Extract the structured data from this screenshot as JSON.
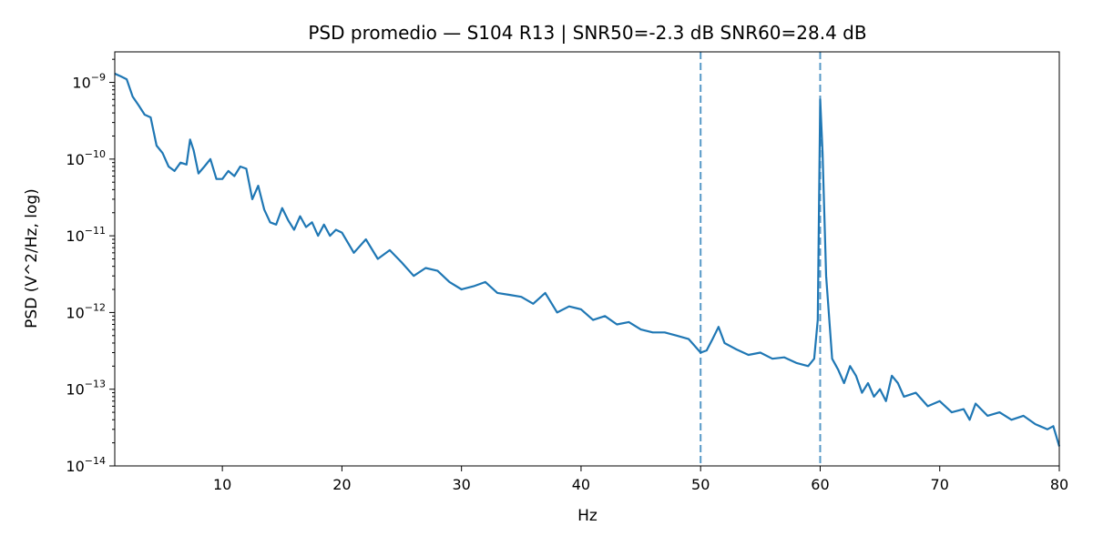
{
  "chart_data": {
    "type": "line",
    "title": "PSD promedio — S104 R13 | SNR50=-2.3 dB  SNR60=28.4 dB",
    "xlabel": "Hz",
    "ylabel": "PSD (V^2/Hz, log)",
    "xlim": [
      1,
      80
    ],
    "ylim": [
      1e-14,
      2.5e-09
    ],
    "yscale": "log",
    "grid": false,
    "legend": false,
    "x_ticks": [
      {
        "value": 10,
        "label": "10"
      },
      {
        "value": 20,
        "label": "20"
      },
      {
        "value": 30,
        "label": "30"
      },
      {
        "value": 40,
        "label": "40"
      },
      {
        "value": 50,
        "label": "50"
      },
      {
        "value": 60,
        "label": "60"
      },
      {
        "value": 70,
        "label": "70"
      },
      {
        "value": 80,
        "label": "80"
      }
    ],
    "y_ticks": [
      {
        "value": 1e-09,
        "label_base": "10",
        "label_exp": "−9"
      },
      {
        "value": 1e-10,
        "label_base": "10",
        "label_exp": "−10"
      },
      {
        "value": 1e-11,
        "label_base": "10",
        "label_exp": "−11"
      },
      {
        "value": 1e-12,
        "label_base": "10",
        "label_exp": "−12"
      },
      {
        "value": 1e-13,
        "label_base": "10",
        "label_exp": "−13"
      },
      {
        "value": 1e-14,
        "label_base": "10",
        "label_exp": "−14"
      }
    ],
    "line_color": "#1f77b4",
    "vlines": [
      {
        "x": 50,
        "style": "dashed",
        "color": "#1f77b4"
      },
      {
        "x": 60,
        "style": "dashed",
        "color": "#1f77b4"
      }
    ],
    "series": [
      {
        "x": [
          1.0,
          1.5,
          2.0,
          2.5,
          3.0,
          3.5,
          4.0,
          4.5,
          5.0,
          5.5,
          6.0,
          6.5,
          7.0,
          7.3,
          7.6,
          8.0,
          8.5,
          9.0,
          9.5,
          10.0,
          10.5,
          11.0,
          11.5,
          12.0,
          12.5,
          13.0,
          13.5,
          14.0,
          14.5,
          15.0,
          15.5,
          16.0,
          16.5,
          17.0,
          17.5,
          18.0,
          18.5,
          19.0,
          19.5,
          20.0,
          21.0,
          22.0,
          23.0,
          24.0,
          25.0,
          26.0,
          27.0,
          28.0,
          29.0,
          30.0,
          31.0,
          32.0,
          33.0,
          34.0,
          35.0,
          36.0,
          37.0,
          38.0,
          39.0,
          40.0,
          41.0,
          42.0,
          43.0,
          44.0,
          45.0,
          46.0,
          47.0,
          48.0,
          49.0,
          50.0,
          50.5,
          51.0,
          51.5,
          52.0,
          53.0,
          54.0,
          55.0,
          56.0,
          57.0,
          58.0,
          59.0,
          59.5,
          59.8,
          60.0,
          60.2,
          60.5,
          61.0,
          61.5,
          62.0,
          62.5,
          63.0,
          63.5,
          64.0,
          64.5,
          65.0,
          65.5,
          66.0,
          66.5,
          67.0,
          68.0,
          69.0,
          70.0,
          71.0,
          72.0,
          72.5,
          73.0,
          74.0,
          75.0,
          76.0,
          77.0,
          78.0,
          79.0,
          79.5,
          80.0
        ],
        "y": [
          1.3e-09,
          1.2e-09,
          1.1e-09,
          6.5e-10,
          5e-10,
          3.8e-10,
          3.5e-10,
          1.5e-10,
          1.2e-10,
          8e-11,
          7e-11,
          9e-11,
          8.5e-11,
          1.8e-10,
          1.3e-10,
          6.5e-11,
          8e-11,
          1e-10,
          5.5e-11,
          5.5e-11,
          7e-11,
          6e-11,
          8e-11,
          7.5e-11,
          3e-11,
          4.5e-11,
          2.2e-11,
          1.5e-11,
          1.4e-11,
          2.3e-11,
          1.6e-11,
          1.2e-11,
          1.8e-11,
          1.3e-11,
          1.5e-11,
          1e-11,
          1.4e-11,
          1e-11,
          1.2e-11,
          1.1e-11,
          6e-12,
          9e-12,
          5e-12,
          6.5e-12,
          4.5e-12,
          3e-12,
          3.8e-12,
          3.5e-12,
          2.5e-12,
          2e-12,
          2.2e-12,
          2.5e-12,
          1.8e-12,
          1.7e-12,
          1.6e-12,
          1.3e-12,
          1.8e-12,
          1e-12,
          1.2e-12,
          1.1e-12,
          8e-13,
          9e-13,
          7e-13,
          7.5e-13,
          6e-13,
          5.5e-13,
          5.5e-13,
          5e-13,
          4.5e-13,
          3e-13,
          3.2e-13,
          4.5e-13,
          6.5e-13,
          4e-13,
          3.3e-13,
          2.8e-13,
          3e-13,
          2.5e-13,
          2.6e-13,
          2.2e-13,
          2e-13,
          2.5e-13,
          8e-13,
          6e-10,
          1.2e-10,
          3e-12,
          2.5e-13,
          1.8e-13,
          1.2e-13,
          2e-13,
          1.5e-13,
          9e-14,
          1.2e-13,
          8e-14,
          1e-13,
          7e-14,
          1.5e-13,
          1.2e-13,
          8e-14,
          9e-14,
          6e-14,
          7e-14,
          5e-14,
          5.5e-14,
          4e-14,
          6.5e-14,
          4.5e-14,
          5e-14,
          4e-14,
          4.5e-14,
          3.5e-14,
          3e-14,
          3.3e-14,
          1.8e-14
        ]
      }
    ]
  }
}
